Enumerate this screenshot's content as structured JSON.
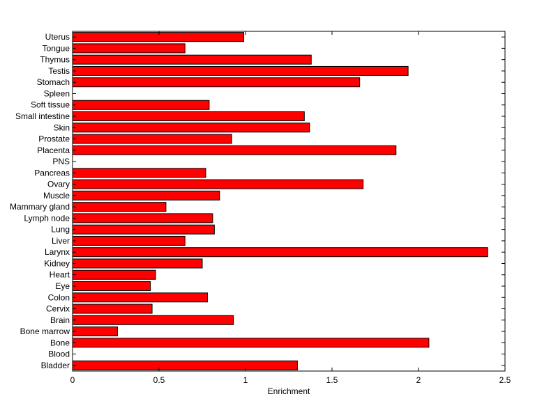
{
  "chart_data": {
    "type": "bar",
    "orientation": "horizontal",
    "xlabel": "Enrichment",
    "ylabel": "",
    "xlim": [
      0,
      2.5
    ],
    "xticks": [
      "0",
      "0.5",
      "1",
      "1.5",
      "2",
      "2.5"
    ],
    "grid": false,
    "legend": "none",
    "bar_color": "#ff0000",
    "edge_color": "#000000",
    "categories": [
      "Uterus",
      "Tongue",
      "Thymus",
      "Testis",
      "Stomach",
      "Spleen",
      "Soft tissue",
      "Small intestine",
      "Skin",
      "Prostate",
      "Placenta",
      "PNS",
      "Pancreas",
      "Ovary",
      "Muscle",
      "Mammary gland",
      "Lymph node",
      "Lung",
      "Liver",
      "Larynx",
      "Kidney",
      "Heart",
      "Eye",
      "Colon",
      "Cervix",
      "Brain",
      "Bone marrow",
      "Bone",
      "Blood",
      "Bladder"
    ],
    "values": [
      0.99,
      0.65,
      1.38,
      1.94,
      1.66,
      0,
      0.79,
      1.34,
      1.37,
      0.92,
      1.87,
      0,
      0.77,
      1.68,
      0.85,
      0.54,
      0.81,
      0.82,
      0.65,
      2.4,
      0.75,
      0.48,
      0.45,
      0.78,
      0.46,
      0.93,
      0.26,
      2.06,
      0,
      1.3
    ]
  }
}
